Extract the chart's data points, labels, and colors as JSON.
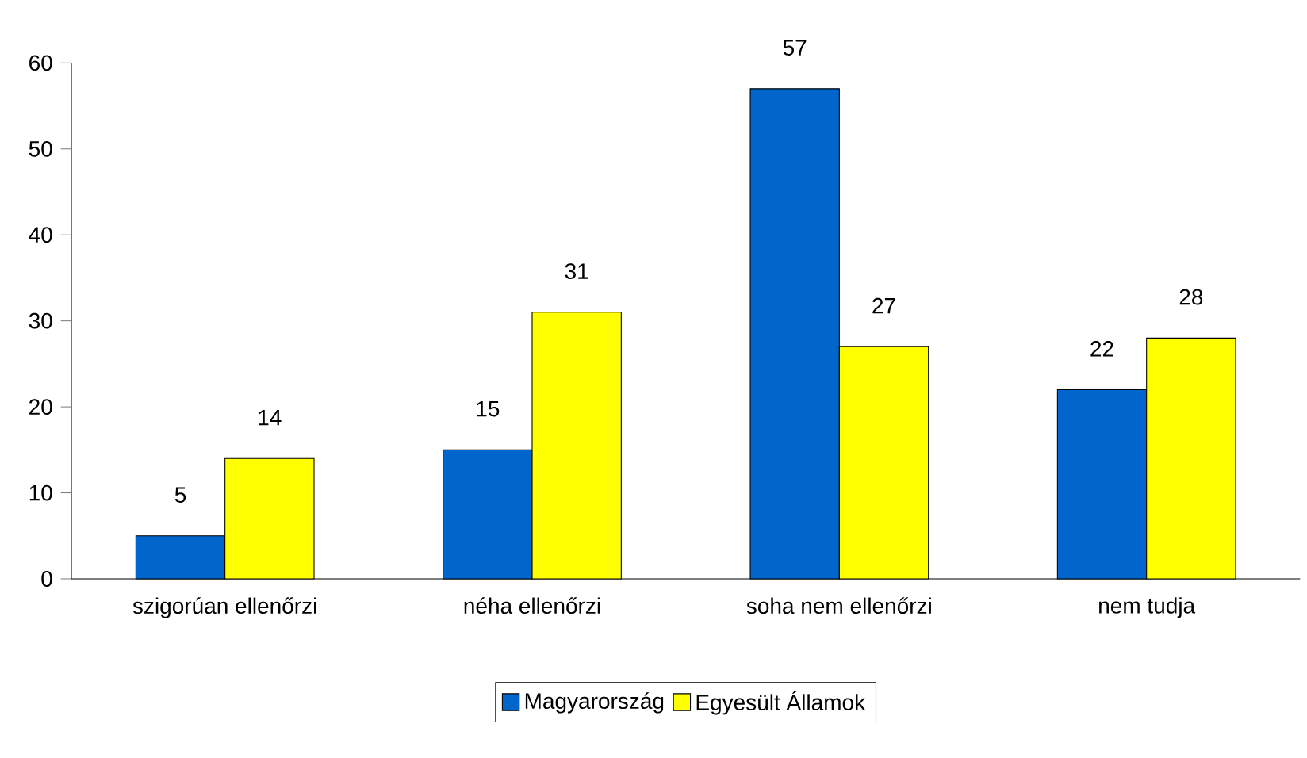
{
  "chart_data": {
    "type": "bar",
    "categories": [
      "szigorúan ellenőrzi",
      "néha ellenőrzi",
      "soha nem ellenőrzi",
      "nem tudja"
    ],
    "series": [
      {
        "name": "Magyarország",
        "color": "#0066cc",
        "values": [
          5,
          15,
          57,
          22
        ]
      },
      {
        "name": "Egyesült Államok",
        "color": "#ffff00",
        "values": [
          14,
          31,
          27,
          28
        ]
      }
    ],
    "ylim": [
      0,
      60
    ],
    "yticks": [
      0,
      10,
      20,
      30,
      40,
      50,
      60
    ],
    "data_labels": true,
    "legend": "bottom",
    "grid": false
  }
}
